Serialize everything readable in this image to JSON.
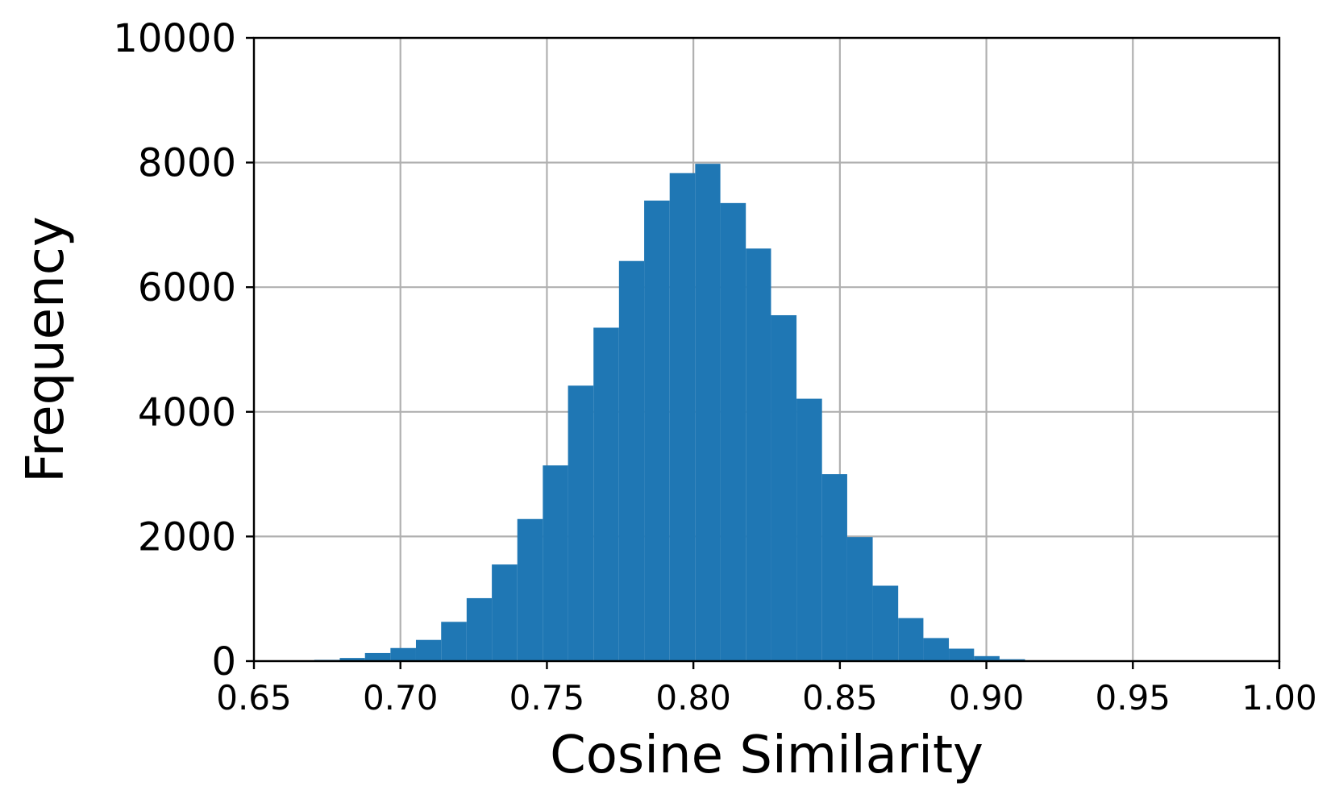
{
  "chart_data": {
    "type": "bar",
    "title": "",
    "xlabel": "Cosine Similarity",
    "ylabel": "Frequency",
    "xlim": [
      0.65,
      1.0
    ],
    "ylim": [
      0,
      10000
    ],
    "xticks": [
      "0.65",
      "0.70",
      "0.75",
      "0.80",
      "0.85",
      "0.90",
      "0.95",
      "1.00"
    ],
    "yticks": [
      "0",
      "2000",
      "4000",
      "6000",
      "8000",
      "10000"
    ],
    "grid": true,
    "legend": "none",
    "bar_color": "#1f77b4",
    "bin_edges": [
      0.6706,
      0.6793,
      0.6879,
      0.6966,
      0.7053,
      0.7139,
      0.7226,
      0.7312,
      0.7399,
      0.7486,
      0.7572,
      0.7659,
      0.7746,
      0.7832,
      0.7919,
      0.8006,
      0.8092,
      0.8179,
      0.8265,
      0.8352,
      0.8439,
      0.8525,
      0.8612,
      0.8699,
      0.8785,
      0.8872,
      0.8958,
      0.9045,
      0.9132
    ],
    "values": [
      20,
      50,
      130,
      210,
      340,
      630,
      1010,
      1550,
      2280,
      3140,
      4420,
      5350,
      6420,
      7390,
      7830,
      7980,
      7350,
      6620,
      5550,
      4210,
      3000,
      1990,
      1210,
      690,
      370,
      200,
      80,
      30
    ]
  }
}
